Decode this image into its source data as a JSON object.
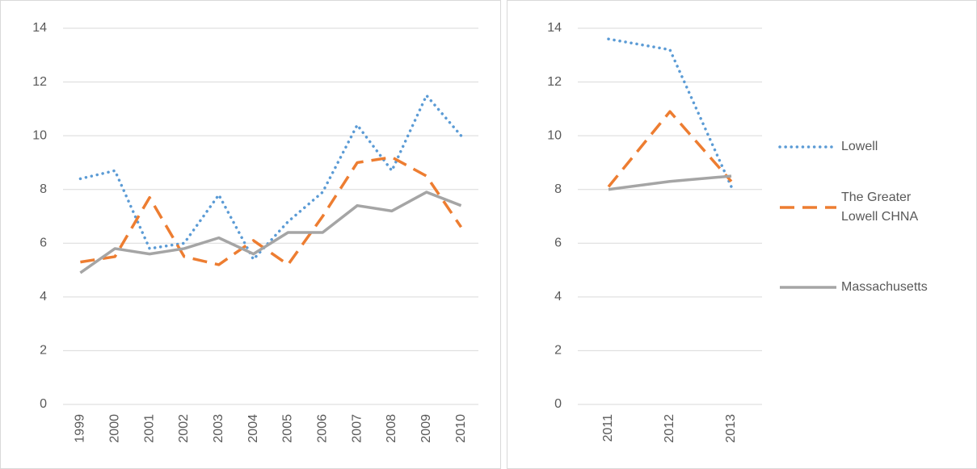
{
  "chart_data": [
    {
      "type": "line",
      "categories": [
        "1999",
        "2000",
        "2001",
        "2002",
        "2003",
        "2004",
        "2005",
        "2006",
        "2007",
        "2008",
        "2009",
        "2010"
      ],
      "ylim": [
        0,
        14
      ],
      "yticks": [
        0,
        2,
        4,
        6,
        8,
        10,
        12,
        14
      ],
      "grid": true,
      "series": [
        {
          "name": "Lowell",
          "color": "#5b9bd5",
          "dash": "dot",
          "values": [
            8.4,
            8.7,
            5.8,
            6.0,
            7.8,
            5.4,
            6.8,
            7.9,
            10.4,
            8.7,
            11.5,
            10.0
          ]
        },
        {
          "name": "The Greater Lowell CHNA",
          "color": "#ed7d31",
          "dash": "dash",
          "values": [
            5.3,
            5.5,
            7.7,
            5.5,
            5.2,
            6.1,
            5.2,
            7.0,
            9.0,
            9.2,
            8.5,
            6.6
          ]
        },
        {
          "name": "Massachusetts",
          "color": "#a5a5a5",
          "dash": "solid",
          "values": [
            4.9,
            5.8,
            5.6,
            5.8,
            6.2,
            5.6,
            6.4,
            6.4,
            7.4,
            7.2,
            7.9,
            7.4
          ]
        }
      ]
    },
    {
      "type": "line",
      "categories": [
        "2011",
        "2012",
        "2013"
      ],
      "ylim": [
        0,
        14
      ],
      "yticks": [
        0,
        2,
        4,
        6,
        8,
        10,
        12,
        14
      ],
      "grid": true,
      "legend": "right",
      "series": [
        {
          "name": "Lowell",
          "color": "#5b9bd5",
          "dash": "dot",
          "values": [
            13.6,
            13.2,
            8.1
          ]
        },
        {
          "name": "The Greater Lowell CHNA",
          "color": "#ed7d31",
          "dash": "dash",
          "values": [
            8.1,
            10.9,
            8.3
          ]
        },
        {
          "name": "Massachusetts",
          "color": "#a5a5a5",
          "dash": "solid",
          "values": [
            8.0,
            8.3,
            8.5
          ]
        }
      ]
    }
  ]
}
